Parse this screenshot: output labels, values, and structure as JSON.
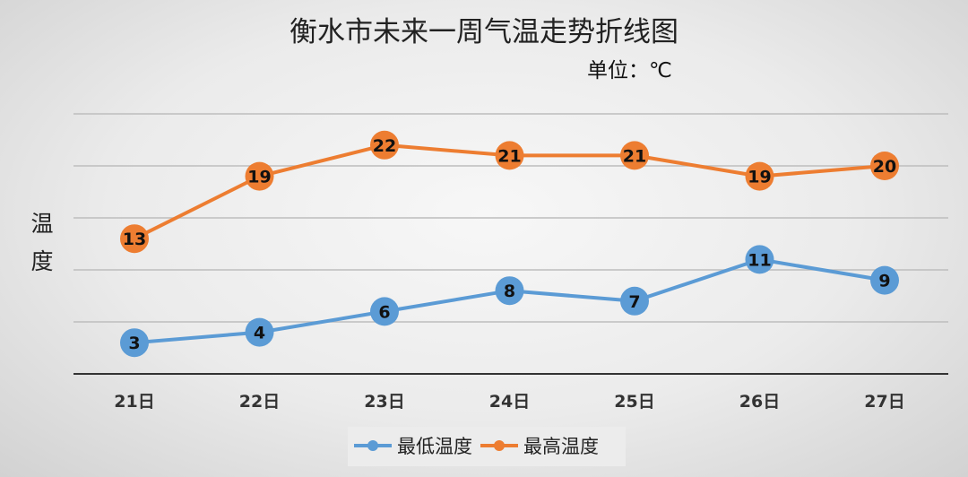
{
  "chart_data": {
    "type": "line",
    "title": "衡水市未来一周气温走势折线图",
    "subtitle": "单位：℃",
    "xlabel": "",
    "ylabel": "温度",
    "categories": [
      "21日",
      "22日",
      "23日",
      "24日",
      "25日",
      "26日",
      "27日"
    ],
    "series": [
      {
        "name": "最低温度",
        "color": "#5b9bd5",
        "values": [
          3,
          4,
          6,
          8,
          7,
          11,
          9
        ]
      },
      {
        "name": "最高温度",
        "color": "#ed7d31",
        "values": [
          13,
          19,
          22,
          21,
          21,
          19,
          20
        ]
      }
    ],
    "ylim": [
      0,
      25
    ],
    "ygrid_step": 5,
    "grid": true,
    "legend": "bottom"
  }
}
